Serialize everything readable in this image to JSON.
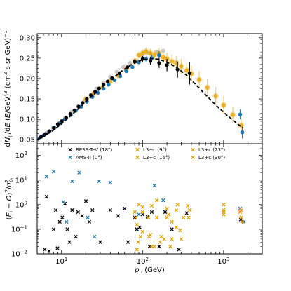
{
  "colors": {
    "bess": "#000000",
    "ams": "#1f77b4",
    "l3c": "#e5a000",
    "grey": "#888888",
    "fit_line": "#000000"
  },
  "chart_data": [
    {
      "type": "scatter",
      "panel": "top",
      "xscale": "log",
      "xlim": [
        5,
        3000
      ],
      "ylim": [
        0.04,
        0.31
      ],
      "ylabel": "dN_μ/dE (E/GeV)^3 (cm^2 s sr GeV)^-1",
      "yticks": [
        "0.05",
        "0.10",
        "0.15",
        "0.20",
        "0.25",
        "0.30"
      ],
      "yticks_values": [
        0.05,
        0.1,
        0.15,
        0.2,
        0.25,
        0.3
      ],
      "grid": false,
      "series": [
        {
          "name": "BESS-TeV",
          "color": "bess",
          "points": [
            [
              5.6,
              0.057
            ],
            [
              6.3,
              0.064
            ],
            [
              7.1,
              0.071
            ],
            [
              8.0,
              0.079
            ],
            [
              9.0,
              0.088
            ],
            [
              10.1,
              0.096
            ],
            [
              11.4,
              0.104
            ],
            [
              12.8,
              0.113
            ],
            [
              14.4,
              0.122
            ],
            [
              16.2,
              0.131
            ],
            [
              18.2,
              0.14
            ],
            [
              20.5,
              0.15
            ],
            [
              23.0,
              0.159
            ],
            [
              26,
              0.168
            ],
            [
              29,
              0.176
            ],
            [
              33,
              0.185
            ],
            [
              37,
              0.193
            ],
            [
              42,
              0.201
            ],
            [
              52,
              0.213
            ],
            [
              65,
              0.228
            ],
            [
              80,
              0.242
            ],
            [
              100,
              0.248
            ],
            [
              125,
              0.243
            ],
            [
              160,
              0.238
            ],
            [
              200,
              0.233
            ],
            [
              270,
              0.222
            ],
            [
              380,
              0.213
            ]
          ],
          "errors": [
            0.001,
            0.001,
            0.001,
            0.001,
            0.001,
            0.001,
            0.001,
            0.001,
            0.001,
            0.001,
            0.001,
            0.001,
            0.001,
            0.002,
            0.002,
            0.002,
            0.002,
            0.002,
            0.003,
            0.004,
            0.005,
            0.007,
            0.009,
            0.012,
            0.015,
            0.02,
            0.028
          ]
        },
        {
          "name": "AMS-II",
          "color": "ams",
          "points": [
            [
              5.1,
              0.052
            ],
            [
              6.0,
              0.06
            ],
            [
              7.0,
              0.069
            ],
            [
              8.2,
              0.079
            ],
            [
              9.5,
              0.09
            ],
            [
              11,
              0.1
            ],
            [
              13,
              0.111
            ],
            [
              15,
              0.121
            ],
            [
              17.5,
              0.131
            ],
            [
              20.5,
              0.143
            ],
            [
              24,
              0.155
            ],
            [
              28,
              0.165
            ],
            [
              33,
              0.175
            ],
            [
              38,
              0.185
            ],
            [
              45,
              0.196
            ],
            [
              53,
              0.206
            ],
            [
              63,
              0.218
            ],
            [
              75,
              0.228
            ],
            [
              90,
              0.24
            ],
            [
              110,
              0.248
            ],
            [
              130,
              0.25
            ],
            [
              160,
              0.257
            ],
            [
              1600,
              0.112
            ],
            [
              1700,
              0.068
            ]
          ],
          "errors": [
            0.001,
            0.001,
            0.001,
            0.001,
            0.001,
            0.001,
            0.001,
            0.001,
            0.001,
            0.001,
            0.001,
            0.002,
            0.002,
            0.002,
            0.002,
            0.003,
            0.003,
            0.004,
            0.005,
            0.006,
            0.008,
            0.01,
            0.012,
            0.015
          ]
        },
        {
          "name": "L3+c",
          "color": "l3c",
          "points": [
            [
              20,
              0.149
            ],
            [
              25,
              0.163
            ],
            [
              32,
              0.178
            ],
            [
              40,
              0.193
            ],
            [
              50,
              0.207
            ],
            [
              63,
              0.223
            ],
            [
              80,
              0.243
            ],
            [
              90,
              0.257
            ],
            [
              100,
              0.262
            ],
            [
              110,
              0.266
            ],
            [
              125,
              0.262
            ],
            [
              140,
              0.258
            ],
            [
              160,
              0.262
            ],
            [
              180,
              0.252
            ],
            [
              200,
              0.248
            ],
            [
              230,
              0.242
            ],
            [
              260,
              0.238
            ],
            [
              300,
              0.23
            ],
            [
              350,
              0.22
            ],
            [
              400,
              0.212
            ],
            [
              500,
              0.197
            ],
            [
              630,
              0.178
            ],
            [
              800,
              0.157
            ],
            [
              1000,
              0.135
            ],
            [
              1300,
              0.111
            ],
            [
              1650,
              0.085
            ]
          ],
          "errors": [
            0.003,
            0.003,
            0.004,
            0.004,
            0.005,
            0.006,
            0.007,
            0.008,
            0.009,
            0.01,
            0.011,
            0.012,
            0.013,
            0.014,
            0.015,
            0.016,
            0.017,
            0.018,
            0.019,
            0.02,
            0.021,
            0.022,
            0.022,
            0.022,
            0.02,
            0.018
          ]
        },
        {
          "name": "",
          "color": "grey",
          "points": [
            [
              5.5,
              0.058
            ],
            [
              6.6,
              0.067
            ],
            [
              7.8,
              0.078
            ],
            [
              9.3,
              0.091
            ],
            [
              11.1,
              0.104
            ],
            [
              13.3,
              0.118
            ],
            [
              16,
              0.132
            ],
            [
              19,
              0.145
            ],
            [
              23,
              0.16
            ],
            [
              27,
              0.175
            ],
            [
              33,
              0.19
            ],
            [
              40,
              0.204
            ],
            [
              48,
              0.216
            ],
            [
              58,
              0.228
            ],
            [
              70,
              0.238
            ],
            [
              85,
              0.244
            ],
            [
              100,
              0.254
            ],
            [
              120,
              0.262
            ],
            [
              150,
              0.265
            ],
            [
              180,
              0.268
            ]
          ]
        }
      ],
      "fit_line": [
        [
          5.0,
          0.05
        ],
        [
          6,
          0.058
        ],
        [
          8,
          0.074
        ],
        [
          10,
          0.089
        ],
        [
          13,
          0.109
        ],
        [
          17,
          0.13
        ],
        [
          22,
          0.151
        ],
        [
          30,
          0.175
        ],
        [
          40,
          0.196
        ],
        [
          55,
          0.218
        ],
        [
          75,
          0.236
        ],
        [
          100,
          0.246
        ],
        [
          130,
          0.249
        ],
        [
          160,
          0.247
        ],
        [
          200,
          0.24
        ],
        [
          260,
          0.228
        ],
        [
          340,
          0.21
        ],
        [
          450,
          0.186
        ],
        [
          600,
          0.16
        ],
        [
          800,
          0.135
        ],
        [
          1100,
          0.11
        ],
        [
          1500,
          0.088
        ],
        [
          1750,
          0.078
        ]
      ]
    },
    {
      "type": "scatter",
      "panel": "bottom",
      "xscale": "log",
      "yscale": "log",
      "xlim": [
        5,
        3000
      ],
      "ylim": [
        0.01,
        300
      ],
      "xlabel": "p_μ (GeV)",
      "ylabel": "(E_i − O)^2/σ^2_{O_i}",
      "xticks": [
        "10^1",
        "10^2",
        "10^3"
      ],
      "xticks_values": [
        10,
        100,
        1000
      ],
      "yticks": [
        "10^-2",
        "10^-1",
        "10^0",
        "10^1",
        "10^2"
      ],
      "yticks_values": [
        0.01,
        0.1,
        1,
        10,
        100
      ],
      "legend_location": "top",
      "series": [
        {
          "name": "BESS-TeV (18°)",
          "color": "bess",
          "points": [
            [
              6.2,
              0.015
            ],
            [
              6.5,
              2.1
            ],
            [
              7.0,
              0.013
            ],
            [
              8.0,
              0.1
            ],
            [
              8.5,
              0.6
            ],
            [
              8.9,
              0.017
            ],
            [
              9.5,
              0.2
            ],
            [
              10.2,
              0.3
            ],
            [
              11.0,
              1.1
            ],
            [
              11.8,
              0.1
            ],
            [
              12.5,
              0.03
            ],
            [
              13.5,
              0.6
            ],
            [
              15.0,
              0.05
            ],
            [
              16.0,
              0.5
            ],
            [
              18.0,
              0.35
            ],
            [
              20.0,
              1.4
            ],
            [
              22.0,
              0.2
            ],
            [
              24.0,
              0.6
            ],
            [
              30.0,
              0.03
            ],
            [
              40.0,
              0.6
            ],
            [
              50.0,
              0.35
            ],
            [
              60.0,
              0.7
            ],
            [
              66.0,
              0.03
            ],
            [
              80,
              0.3
            ],
            [
              85,
              0.1
            ],
            [
              92,
              0.12
            ],
            [
              100,
              0.4
            ],
            [
              115,
              0.32
            ],
            [
              122,
              0.02
            ],
            [
              130,
              0.5
            ],
            [
              160,
              0.02
            ],
            [
              190,
              0.5
            ],
            [
              230,
              0.1
            ],
            [
              280,
              0.015
            ],
            [
              350,
              0.45
            ],
            [
              1630,
              0.25
            ]
          ]
        },
        {
          "name": "AMS-II (0°)",
          "color": "ams",
          "points": [
            [
              6.5,
              14
            ],
            [
              8.0,
              22
            ],
            [
              10.5,
              1.3
            ],
            [
              11.5,
              0.2
            ],
            [
              13.5,
              9
            ],
            [
              16.5,
              20
            ],
            [
              21,
              0.3
            ],
            [
              25.5,
              0.05
            ],
            [
              29,
              9
            ],
            [
              40,
              8
            ],
            [
              90,
              0.4
            ],
            [
              140,
              6
            ],
            [
              180,
              1.5
            ],
            [
              1600,
              0.7
            ],
            [
              1770,
              0.2
            ]
          ]
        },
        {
          "name": "L3+c (9°)",
          "color": "l3c",
          "points": [
            [
              82,
              0.3
            ],
            [
              85,
              0.015
            ],
            [
              94,
              0.05
            ],
            [
              100,
              0.08
            ],
            [
              130,
              0.02
            ],
            [
              150,
              0.3
            ],
            [
              210,
              0.4
            ],
            [
              260,
              0.12
            ],
            [
              290,
              0.09
            ],
            [
              370,
              0.3
            ],
            [
              1000,
              0.6
            ],
            [
              1650,
              0.3
            ]
          ]
        },
        {
          "name": "L3+c (16°)",
          "color": "l3c",
          "points": [
            [
              80,
              0.5
            ],
            [
              88,
              0.03
            ],
            [
              120,
              0.05
            ],
            [
              140,
              0.02
            ],
            [
              165,
              0.03
            ],
            [
              200,
              0.7
            ],
            [
              230,
              0.04
            ],
            [
              270,
              1.0
            ],
            [
              360,
              0.9
            ],
            [
              1000,
              0.5
            ]
          ]
        },
        {
          "name": "L3+c (23°)",
          "color": "l3c",
          "points": [
            [
              85,
              0.15
            ],
            [
              100,
              0.8
            ],
            [
              125,
              0.06
            ],
            [
              150,
              1.5
            ],
            [
              185,
              0.04
            ],
            [
              220,
              0.02
            ],
            [
              300,
              0.04
            ],
            [
              380,
              0.6
            ],
            [
              1000,
              1.0
            ],
            [
              1650,
              0.6
            ]
          ]
        },
        {
          "name": "L3+c (30°)",
          "color": "l3c",
          "points": [
            [
              90,
              1.0
            ],
            [
              100,
              0.5
            ],
            [
              118,
              0.3
            ],
            [
              130,
              0.9
            ],
            [
              170,
              0.05
            ],
            [
              200,
              0.3
            ],
            [
              230,
              0.2
            ],
            [
              260,
              0.6
            ],
            [
              320,
              0.3
            ],
            [
              1000,
              0.4
            ],
            [
              1600,
              0.5
            ],
            [
              1700,
              0.2
            ]
          ]
        }
      ]
    }
  ]
}
